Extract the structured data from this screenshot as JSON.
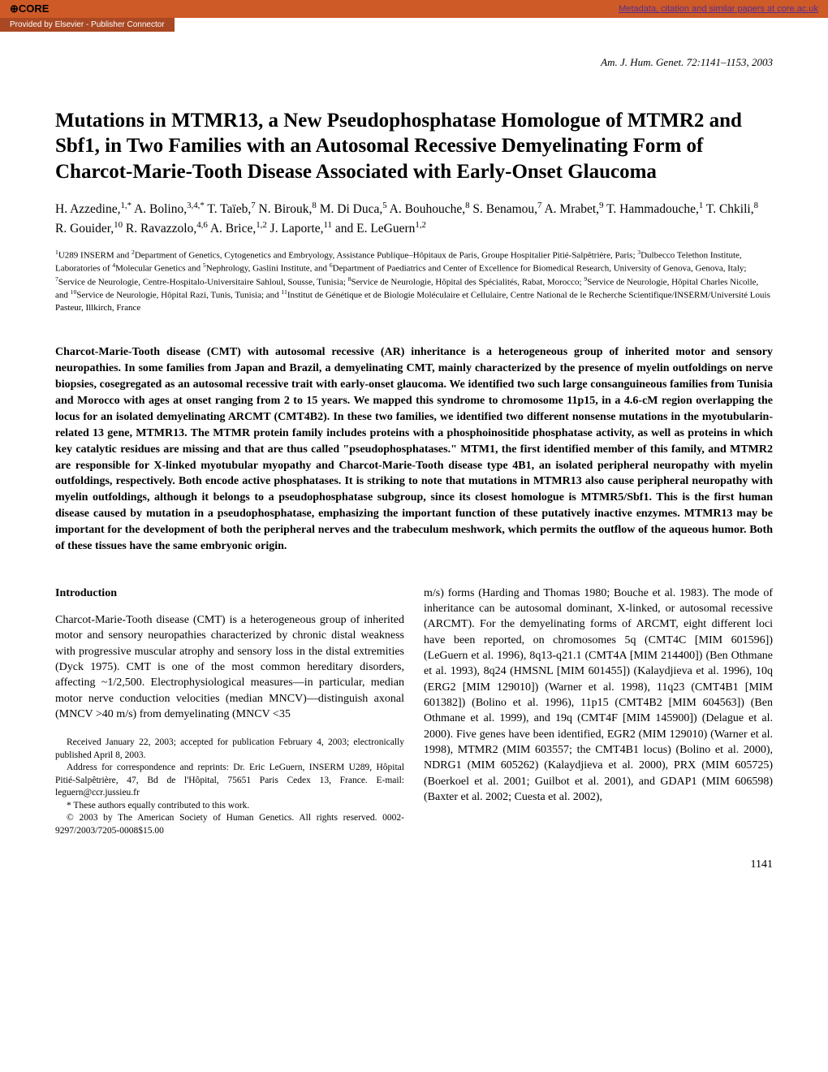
{
  "banner": {
    "logo_text": "CORE",
    "right_link": "Metadata, citation and similar papers at core.ac.uk",
    "provided_text": "Provided by Elsevier - Publisher Connector"
  },
  "journal_citation": "Am. J. Hum. Genet. 72:1141–1153, 2003",
  "title": "Mutations in MTMR13, a New Pseudophosphatase Homologue of MTMR2 and Sbf1, in Two Families with an Autosomal Recessive Demyelinating Form of Charcot-Marie-Tooth Disease Associated with Early-Onset Glaucoma",
  "authors_html": "H. Azzedine,<sup>1,*</sup> A. Bolino,<sup>3,4,*</sup> T. Taïeb,<sup>7</sup> N. Birouk,<sup>8</sup> M. Di Duca,<sup>5</sup> A. Bouhouche,<sup>8</sup> S. Benamou,<sup>7</sup> A. Mrabet,<sup>9</sup> T. Hammadouche,<sup>1</sup> T. Chkili,<sup>8</sup> R. Gouider,<sup>10</sup> R. Ravazzolo,<sup>4,6</sup> A. Brice,<sup>1,2</sup> J. Laporte,<sup>11</sup> and E. LeGuern<sup>1,2</sup>",
  "affiliations_html": "<sup>1</sup>U289 INSERM and <sup>2</sup>Department of Genetics, Cytogenetics and Embryology, Assistance Publique–Hôpitaux de Paris, Groupe Hospitalier Pitié-Salpêtrière, Paris; <sup>3</sup>Dulbecco Telethon Institute, Laboratories of <sup>4</sup>Molecular Genetics and <sup>5</sup>Nephrology, Gaslini Institute, and <sup>6</sup>Department of Paediatrics and Center of Excellence for Biomedical Research, University of Genova, Genova, Italy; <sup>7</sup>Service de Neurologie, Centre-Hospitalo-Universitaire Sahloul, Sousse, Tunisia; <sup>8</sup>Service de Neurologie, Hôpital des Spécialités, Rabat, Morocco; <sup>9</sup>Service de Neurologie, Hôpital Charles Nicolle, and <sup>10</sup>Service de Neurologie, Hôpital Razi, Tunis, Tunisia; and <sup>11</sup>Institut de Génétique et de Biologie Moléculaire et Cellulaire, Centre National de le Recherche Scientifique/INSERM/Université Louis Pasteur, Illkirch, France",
  "abstract": "Charcot-Marie-Tooth disease (CMT) with autosomal recessive (AR) inheritance is a heterogeneous group of inherited motor and sensory neuropathies. In some families from Japan and Brazil, a demyelinating CMT, mainly characterized by the presence of myelin outfoldings on nerve biopsies, cosegregated as an autosomal recessive trait with early-onset glaucoma. We identified two such large consanguineous families from Tunisia and Morocco with ages at onset ranging from 2 to 15 years. We mapped this syndrome to chromosome 11p15, in a 4.6-cM region overlapping the locus for an isolated demyelinating ARCMT (CMT4B2). In these two families, we identified two different nonsense mutations in the myotubularin-related 13 gene, MTMR13. The MTMR protein family includes proteins with a phosphoinositide phosphatase activity, as well as proteins in which key catalytic residues are missing and that are thus called \"pseudophosphatases.\" MTM1, the first identified member of this family, and MTMR2 are responsible for X-linked myotubular myopathy and Charcot-Marie-Tooth disease type 4B1, an isolated peripheral neuropathy with myelin outfoldings, respectively. Both encode active phosphatases. It is striking to note that mutations in MTMR13 also cause peripheral neuropathy with myelin outfoldings, although it belongs to a pseudophosphatase subgroup, since its closest homologue is MTMR5/Sbf1. This is the first human disease caused by mutation in a pseudophosphatase, emphasizing the important function of these putatively inactive enzymes. MTMR13 may be important for the development of both the peripheral nerves and the trabeculum meshwork, which permits the outflow of the aqueous humor. Both of these tissues have the same embryonic origin.",
  "introduction": {
    "heading": "Introduction",
    "left_col": "Charcot-Marie-Tooth disease (CMT) is a heterogeneous group of inherited motor and sensory neuropathies characterized by chronic distal weakness with progressive muscular atrophy and sensory loss in the distal extremities (Dyck 1975). CMT is one of the most common hereditary disorders, affecting ~1/2,500. Electrophysiological measures—in particular, median motor nerve conduction velocities (median MNCV)—distinguish axonal (MNCV >40 m/s) from demyelinating (MNCV <35",
    "right_col": "m/s) forms (Harding and Thomas 1980; Bouche et al. 1983). The mode of inheritance can be autosomal dominant, X-linked, or autosomal recessive (ARCMT). For the demyelinating forms of ARCMT, eight different loci have been reported, on chromosomes 5q (CMT4C [MIM 601596]) (LeGuern et al. 1996), 8q13-q21.1 (CMT4A [MIM 214400]) (Ben Othmane et al. 1993), 8q24 (HMSNL [MIM 601455]) (Kalaydjieva et al. 1996), 10q (ERG2 [MIM 129010]) (Warner et al. 1998), 11q23 (CMT4B1 [MIM 601382]) (Bolino et al. 1996), 11p15 (CMT4B2 [MIM 604563]) (Ben Othmane et al. 1999), and 19q (CMT4F [MIM 145900]) (Delague et al. 2000). Five genes have been identified, EGR2 (MIM 129010) (Warner et al. 1998), MTMR2 (MIM 603557; the CMT4B1 locus) (Bolino et al. 2000), NDRG1 (MIM 605262) (Kalaydjieva et al. 2000), PRX (MIM 605725) (Boerkoel et al. 2001; Guilbot et al. 2001), and GDAP1 (MIM 606598) (Baxter et al. 2002; Cuesta et al. 2002),"
  },
  "footnotes": {
    "received": "Received January 22, 2003; accepted for publication February 4, 2003; electronically published April 8, 2003.",
    "address": "Address for correspondence and reprints: Dr. Eric LeGuern, INSERM U289, Hôpital Pitié-Salpêtrière, 47, Bd de l'Hôpital, 75651 Paris Cedex 13, France. E-mail: leguern@ccr.jussieu.fr",
    "equal": "* These authors equally contributed to this work.",
    "copyright": "© 2003 by The American Society of Human Genetics. All rights reserved. 0002-9297/2003/7205-0008$15.00"
  },
  "page_number": "1141",
  "colors": {
    "banner_bg": "#ce5a28",
    "banner_sub_bg": "#a94823",
    "link_color": "#5a2d8f",
    "text_color": "#000000",
    "bg": "#ffffff"
  },
  "typography": {
    "title_fontsize": 25,
    "authors_fontsize": 15.5,
    "affiliations_fontsize": 11,
    "abstract_fontsize": 14,
    "body_fontsize": 14,
    "footnote_fontsize": 11.5
  }
}
